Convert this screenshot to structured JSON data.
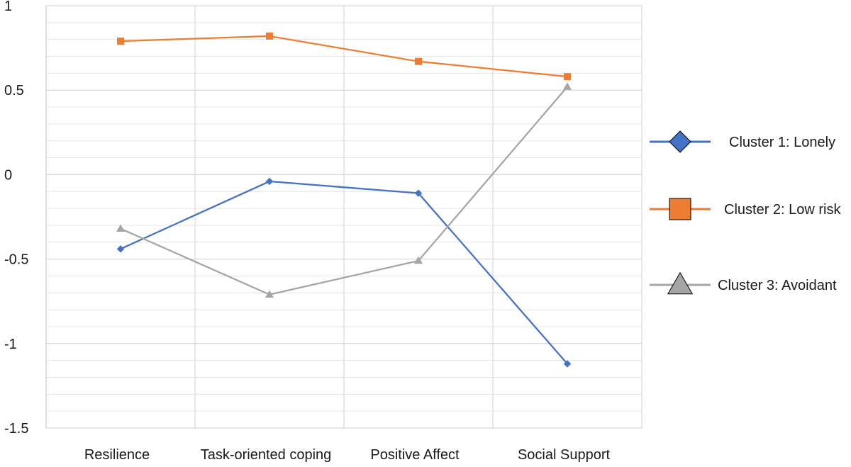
{
  "chart_data": {
    "type": "line",
    "categories": [
      "Resilience",
      "Task-oriented coping",
      "Positive Affect",
      "Social Support"
    ],
    "series": [
      {
        "name": "Cluster 1: Lonely",
        "values": [
          -0.44,
          -0.04,
          -0.11,
          -1.12
        ],
        "color": "#4472C4",
        "marker": "diamond"
      },
      {
        "name": "Cluster 2: Low risk",
        "values": [
          0.79,
          0.82,
          0.67,
          0.58
        ],
        "color": "#ED7D31",
        "marker": "square"
      },
      {
        "name": "Cluster 3: Avoidant",
        "values": [
          -0.32,
          -0.71,
          -0.51,
          0.52
        ],
        "color": "#A5A5A5",
        "marker": "triangle"
      }
    ],
    "ylim": [
      -1.5,
      1
    ],
    "yticks": [
      "1",
      "0.5",
      "0",
      "-0.5",
      "-1",
      "-1.5"
    ],
    "ytick_values": [
      1,
      0.5,
      0,
      -0.5,
      -1,
      -1.5
    ],
    "minor_grid_step": 0.1,
    "grid": true,
    "legend_position": "right",
    "title": "",
    "xlabel": "",
    "ylabel": ""
  }
}
